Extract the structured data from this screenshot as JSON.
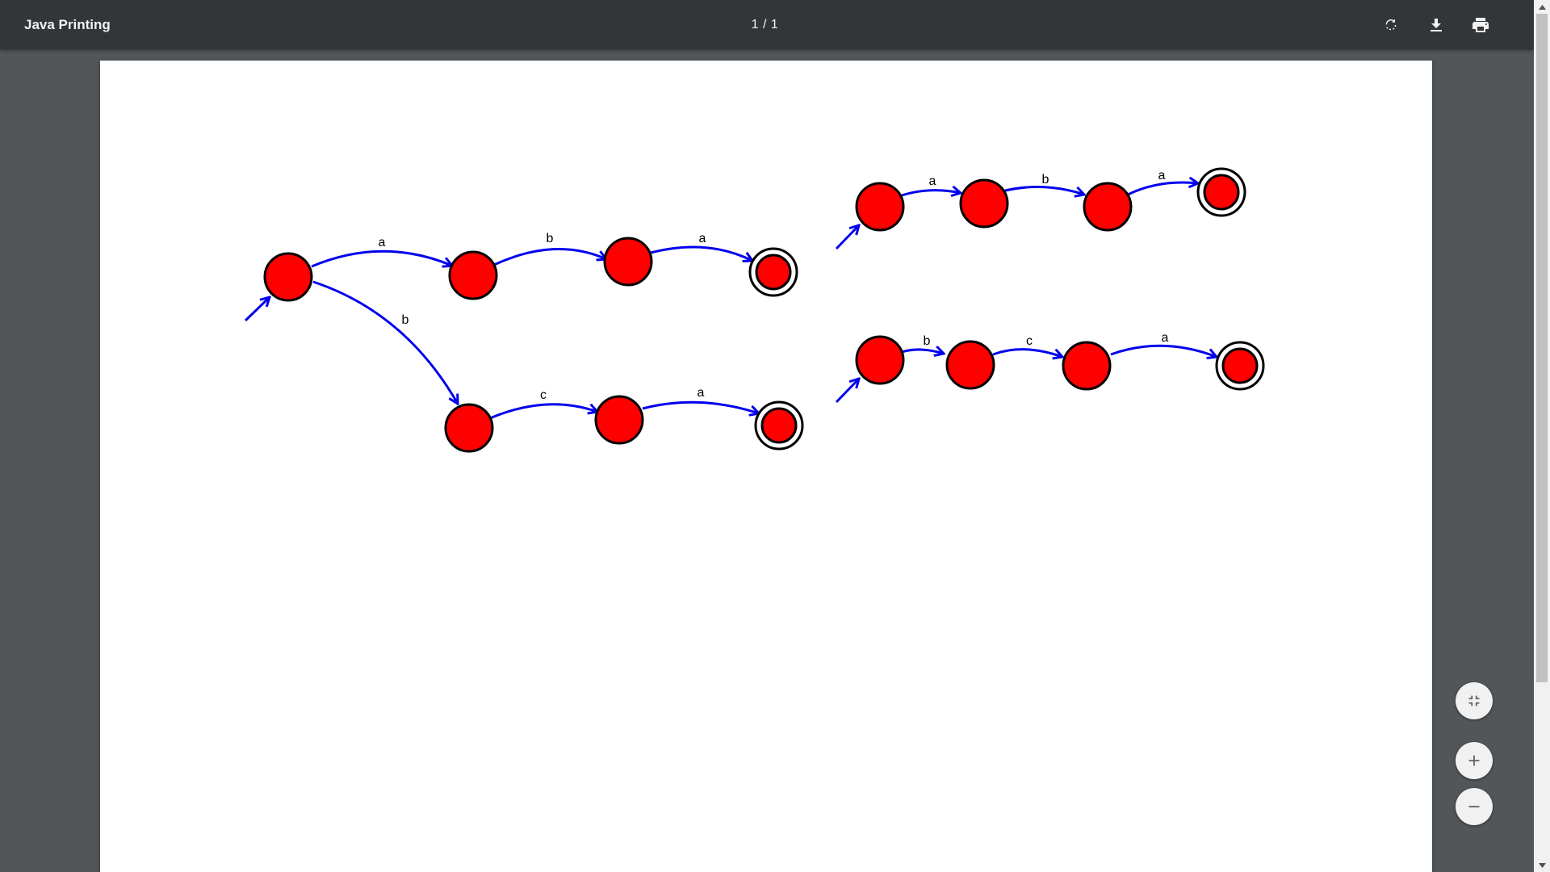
{
  "window": {
    "title": "Java Printing"
  },
  "toolbar": {
    "page_indicator": "1 / 1",
    "rotate_icon": "rotate-icon",
    "download_icon": "download-icon",
    "print_icon": "print-icon"
  },
  "zoom_controls": {
    "fit_icon": "fit-to-page-icon",
    "zoom_in_icon": "plus-icon",
    "zoom_out_icon": "minus-icon"
  },
  "document": {
    "colors": {
      "state_fill": "#ff0000",
      "state_stroke": "#000000",
      "edge": "#0000ee",
      "label": "#000000",
      "page": "#ffffff"
    },
    "automaton_1": {
      "transitions": [
        {
          "from": "q0",
          "to": "q1",
          "label": "a"
        },
        {
          "from": "q1",
          "to": "q2",
          "label": "b"
        },
        {
          "from": "q2",
          "to": "q3",
          "label": "a"
        },
        {
          "from": "q0",
          "to": "q4",
          "label": "b"
        },
        {
          "from": "q4",
          "to": "q5",
          "label": "c"
        },
        {
          "from": "q5",
          "to": "q6",
          "label": "a"
        }
      ],
      "accepting_states": [
        "q3",
        "q6"
      ]
    },
    "automaton_2": {
      "transitions": [
        {
          "from": "p0",
          "to": "p1",
          "label": "a"
        },
        {
          "from": "p1",
          "to": "p2",
          "label": "b"
        },
        {
          "from": "p2",
          "to": "p3",
          "label": "a"
        }
      ],
      "accepting_states": [
        "p3"
      ]
    },
    "automaton_3": {
      "transitions": [
        {
          "from": "r0",
          "to": "r1",
          "label": "b"
        },
        {
          "from": "r1",
          "to": "r2",
          "label": "c"
        },
        {
          "from": "r2",
          "to": "r3",
          "label": "a"
        }
      ],
      "accepting_states": [
        "r3"
      ]
    }
  }
}
